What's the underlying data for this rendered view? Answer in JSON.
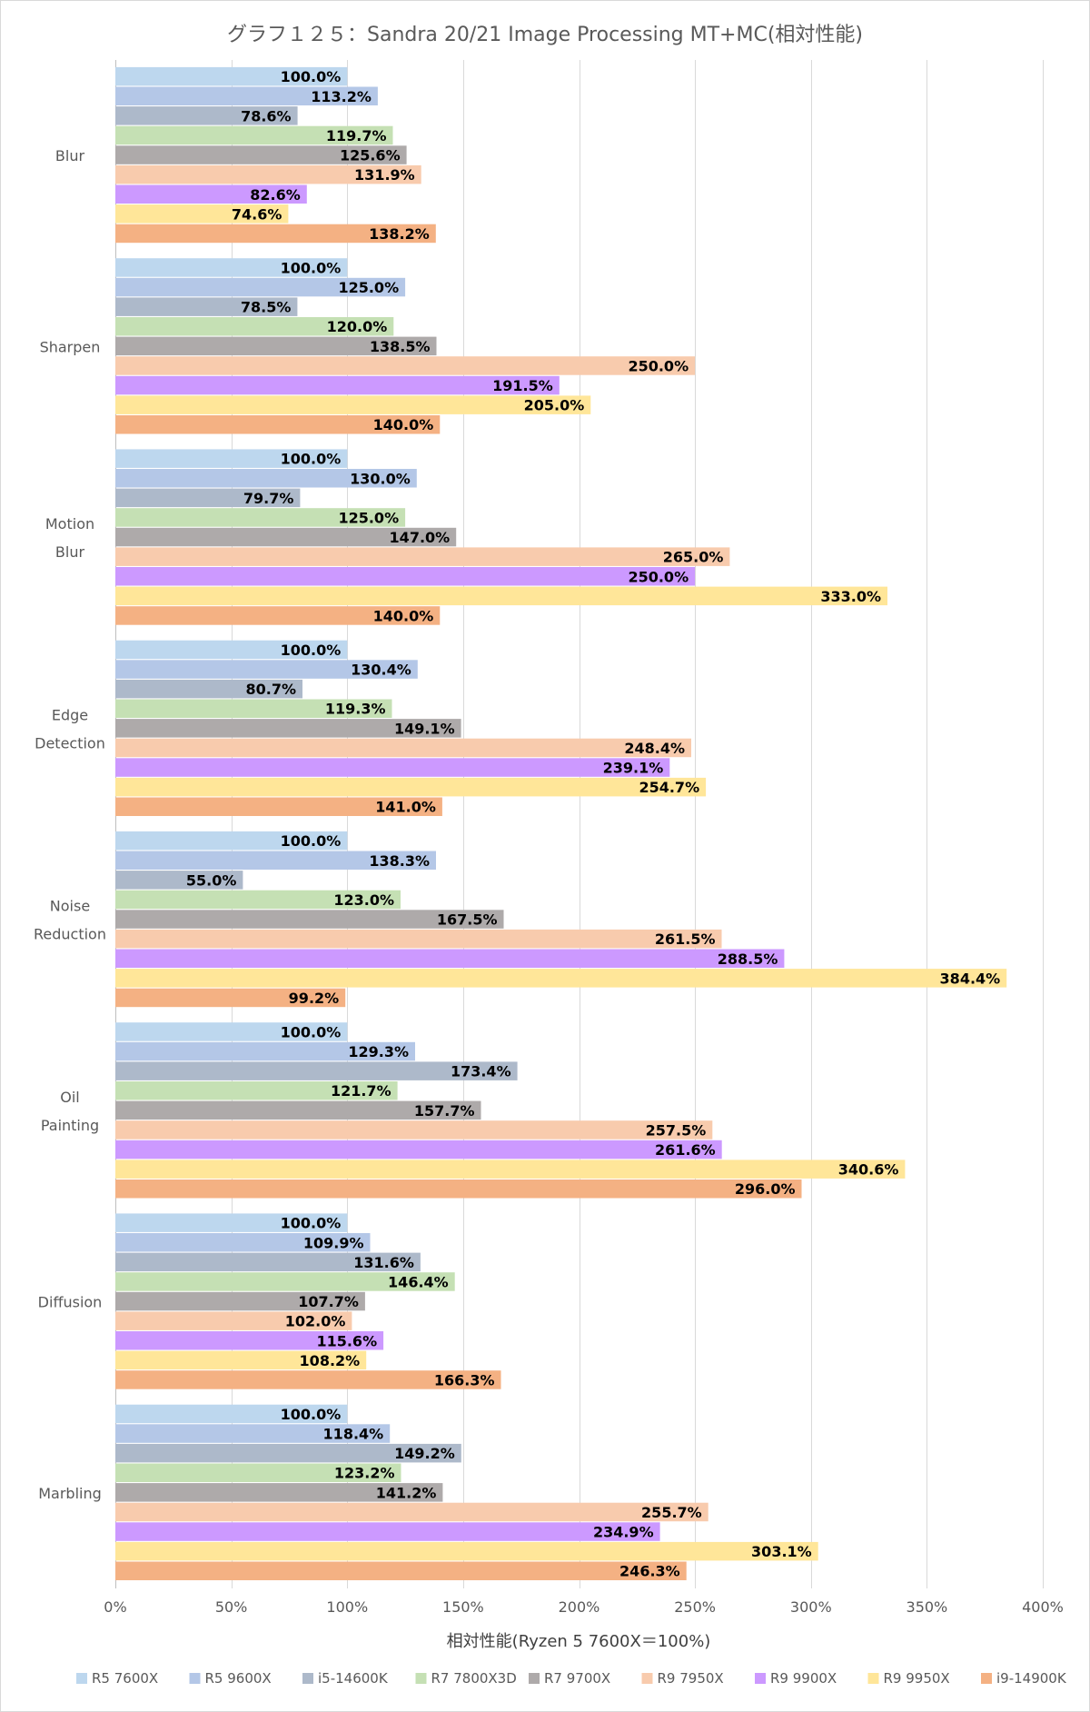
{
  "chart_data": {
    "type": "bar",
    "orientation": "horizontal",
    "title": "グラフ１２５：Sandra 20/21 Image Processing MT+MC(相対性能)",
    "xlabel": "相対性能(Ryzen 5 7600X＝100%)",
    "ylabel": "",
    "xlim": [
      0,
      400
    ],
    "xticks": [
      "0%",
      "50%",
      "100%",
      "150%",
      "200%",
      "250%",
      "300%",
      "350%",
      "400%"
    ],
    "grid": true,
    "legend_position": "bottom",
    "categories": [
      [
        "Blur"
      ],
      [
        "Sharpen"
      ],
      [
        "Motion",
        "Blur"
      ],
      [
        "Edge",
        "Detection"
      ],
      [
        "Noise",
        "Reduction"
      ],
      [
        "Oil",
        "Painting"
      ],
      [
        "Diffusion"
      ],
      [
        "Marbling"
      ]
    ],
    "series": [
      {
        "name": "R5 7600X",
        "color": "#bdd7ee",
        "values": [
          100.0,
          100.0,
          100.0,
          100.0,
          100.0,
          100.0,
          100.0,
          100.0
        ],
        "labels": [
          "100.0%",
          "100.0%",
          "100.0%",
          "100.0%",
          "100.0%",
          "100.0%",
          "100.0%",
          "100.0%"
        ]
      },
      {
        "name": "R5 9600X",
        "color": "#b4c7e7",
        "values": [
          113.2,
          125.0,
          130.0,
          130.4,
          138.3,
          129.3,
          109.9,
          118.4
        ],
        "labels": [
          "113.2%",
          "125.0%",
          "130.0%",
          "130.4%",
          "138.3%",
          "129.3%",
          "109.9%",
          "118.4%"
        ]
      },
      {
        "name": "i5-14600K",
        "color": "#adb9ca",
        "values": [
          78.6,
          78.5,
          79.7,
          80.7,
          55.0,
          173.4,
          131.6,
          149.2
        ],
        "labels": [
          "78.6%",
          "78.5%",
          "79.7%",
          "80.7%",
          "55.0%",
          "173.4%",
          "131.6%",
          "149.2%"
        ]
      },
      {
        "name": "R7 7800X3D",
        "color": "#c5e0b4",
        "values": [
          119.7,
          120.0,
          125.0,
          119.3,
          123.0,
          121.7,
          146.4,
          123.2
        ],
        "labels": [
          "119.7%",
          "120.0%",
          "125.0%",
          "119.3%",
          "123.0%",
          "121.7%",
          "146.4%",
          "123.2%"
        ]
      },
      {
        "name": "R7 9700X",
        "color": "#aeaaaa",
        "values": [
          125.6,
          138.5,
          147.0,
          149.1,
          167.5,
          157.7,
          107.7,
          141.2
        ],
        "labels": [
          "125.6%",
          "138.5%",
          "147.0%",
          "149.1%",
          "167.5%",
          "157.7%",
          "107.7%",
          "141.2%"
        ]
      },
      {
        "name": "R9 7950X",
        "color": "#f8cbad",
        "values": [
          131.9,
          250.0,
          265.0,
          248.4,
          261.5,
          257.5,
          102.0,
          255.7
        ],
        "labels": [
          "131.9%",
          "250.0%",
          "265.0%",
          "248.4%",
          "261.5%",
          "257.5%",
          "102.0%",
          "255.7%"
        ]
      },
      {
        "name": "R9 9900X",
        "color": "#cc99ff",
        "values": [
          82.6,
          191.5,
          250.0,
          239.1,
          288.5,
          261.6,
          115.6,
          234.9
        ],
        "labels": [
          "82.6%",
          "191.5%",
          "250.0%",
          "239.1%",
          "288.5%",
          "261.6%",
          "115.6%",
          "234.9%"
        ]
      },
      {
        "name": "R9 9950X",
        "color": "#ffe699",
        "values": [
          74.6,
          205.0,
          333.0,
          254.7,
          384.4,
          340.6,
          108.2,
          303.1
        ],
        "labels": [
          "74.6%",
          "205.0%",
          "333.0%",
          "254.7%",
          "384.4%",
          "340.6%",
          "108.2%",
          "303.1%"
        ]
      },
      {
        "name": "i9-14900K",
        "color": "#f4b183",
        "values": [
          138.2,
          140.0,
          140.0,
          141.0,
          99.2,
          296.0,
          166.3,
          246.3
        ],
        "labels": [
          "138.2%",
          "140.0%",
          "140.0%",
          "141.0%",
          "99.2%",
          "296.0%",
          "166.3%",
          "246.3%"
        ]
      }
    ]
  }
}
